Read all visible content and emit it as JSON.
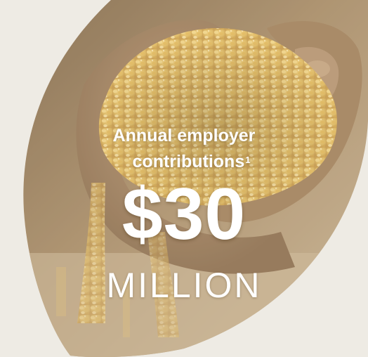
{
  "stat": {
    "heading_line1": "Annual employer",
    "heading_line2": "contributions",
    "footnote_marker": "1",
    "amount": "$30",
    "unit": "MILLION"
  },
  "colors": {
    "page_background": "#eeebe4",
    "text": "#ffffff",
    "photo_base": "#9c8260",
    "grain": "#e7c162"
  },
  "image": {
    "subject": "hands-holding-grain-photo"
  }
}
